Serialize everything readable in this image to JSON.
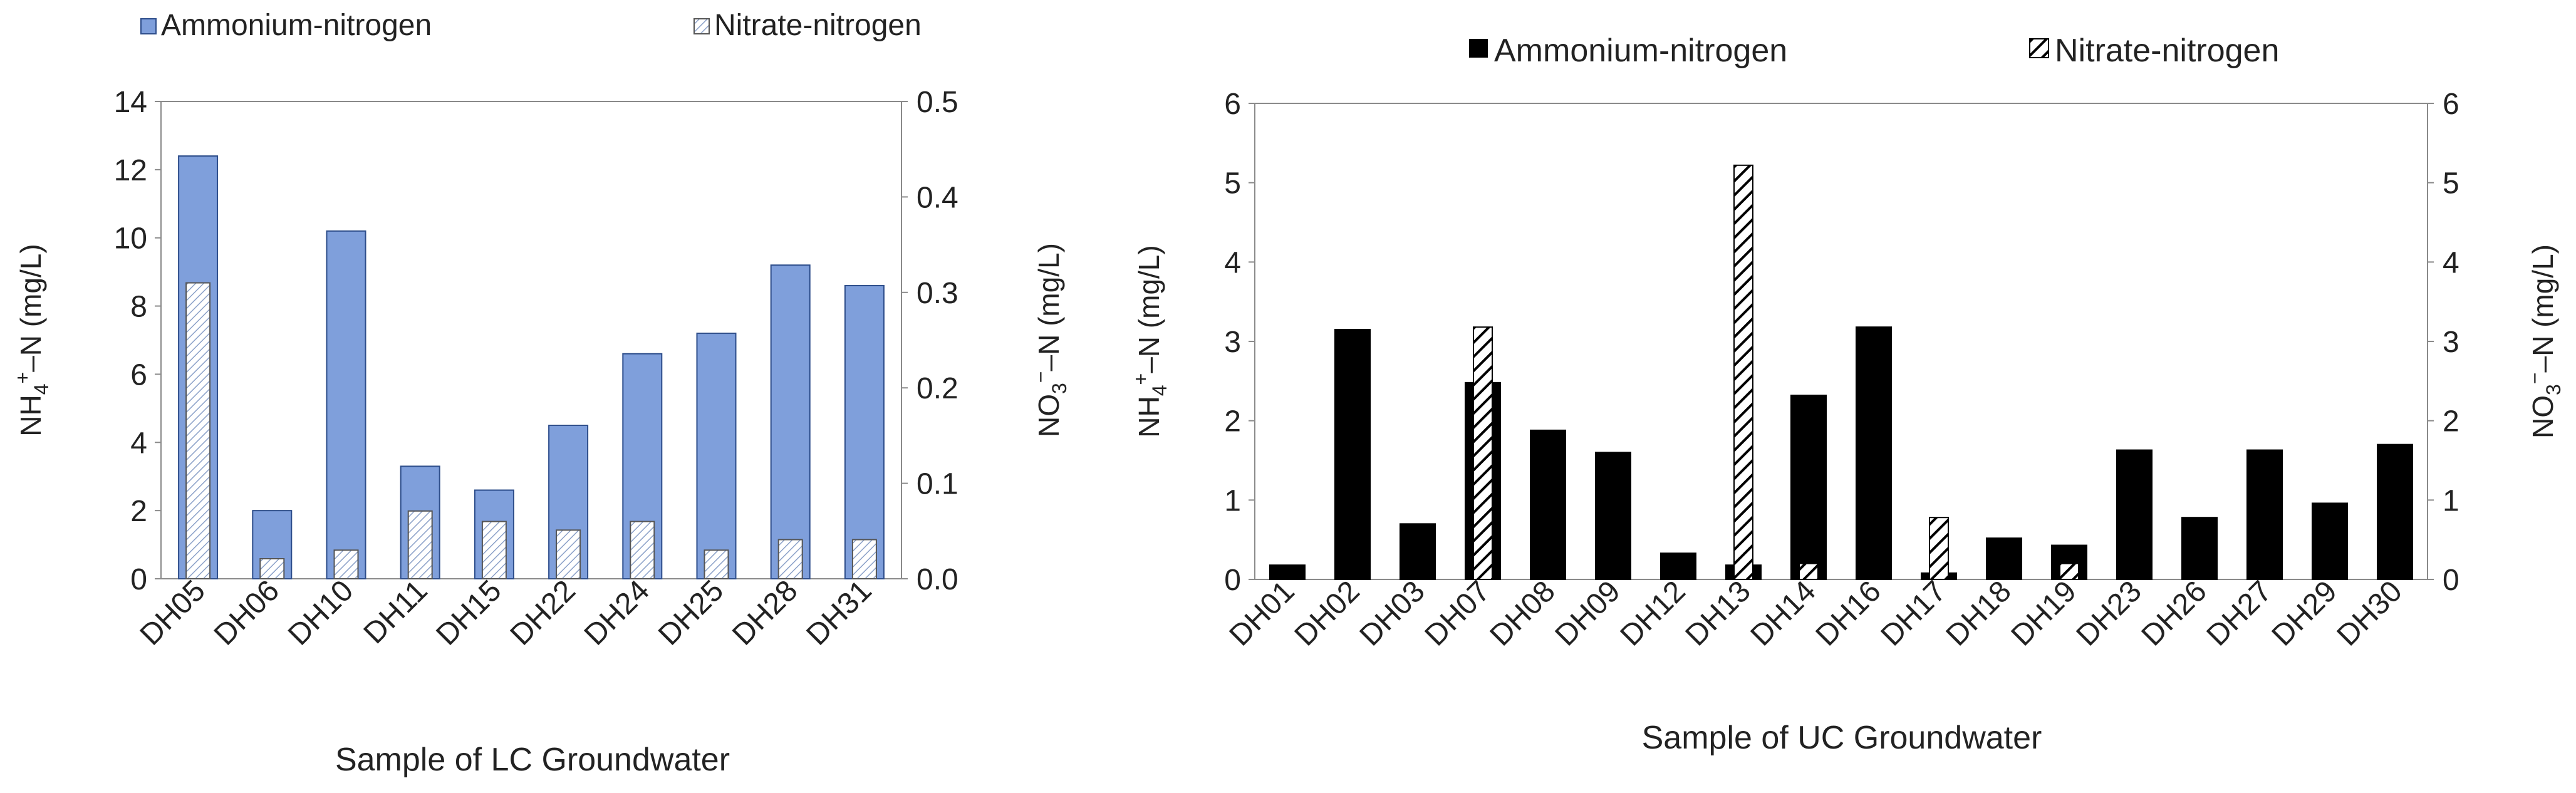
{
  "chart_data": [
    {
      "type": "bar",
      "xlabel": "Sample of LC Groundwater",
      "ylabel": "NH4+-N (mg/L)",
      "y2label": "NO3−-N (mg/L)",
      "ylim": [
        0,
        14
      ],
      "y2lim": [
        0,
        0.5
      ],
      "yticks": [
        "0",
        "2",
        "4",
        "6",
        "8",
        "10",
        "12",
        "14"
      ],
      "y2ticks": [
        "0.0",
        "0.1",
        "0.2",
        "0.3",
        "0.4",
        "0.5"
      ],
      "legend_position": "top",
      "categories": [
        "DH05",
        "DH06",
        "DH10",
        "DH11",
        "DH15",
        "DH22",
        "DH24",
        "DH25",
        "DH28",
        "DH31"
      ],
      "series": [
        {
          "name": "Ammonium-nitrogen",
          "axis": "left",
          "color": "#7f9fdb",
          "values": [
            12.4,
            2.0,
            10.2,
            3.3,
            2.6,
            4.5,
            6.6,
            7.2,
            9.2,
            8.6
          ]
        },
        {
          "name": "Nitrate-nitrogen",
          "axis": "right",
          "pattern": "light-hatch",
          "values": [
            0.31,
            0.021,
            0.03,
            0.071,
            0.06,
            0.051,
            0.06,
            0.03,
            0.041,
            0.041
          ]
        }
      ]
    },
    {
      "type": "bar",
      "xlabel": "Sample of UC Groundwater",
      "ylabel": "NH4+-N (mg/L)",
      "y2label": "NO3−-N (mg/L)",
      "ylim": [
        0,
        6
      ],
      "y2lim": [
        0,
        6
      ],
      "yticks": [
        "0",
        "1",
        "2",
        "3",
        "4",
        "5",
        "6"
      ],
      "y2ticks": [
        "0",
        "1",
        "2",
        "3",
        "4",
        "5",
        "6"
      ],
      "legend_position": "top",
      "categories": [
        "DH01",
        "DH02",
        "DH03",
        "DH07",
        "DH08",
        "DH09",
        "DH12",
        "DH13",
        "DH14",
        "DH16",
        "DH17",
        "DH18",
        "DH19",
        "DH23",
        "DH26",
        "DH27",
        "DH29",
        "DH30"
      ],
      "series": [
        {
          "name": "Ammonium-nitrogen",
          "axis": "left",
          "color": "#000000",
          "values": [
            0.18,
            3.15,
            0.7,
            2.48,
            1.88,
            1.6,
            0.33,
            0.18,
            2.32,
            3.18,
            0.08,
            0.52,
            0.43,
            1.63,
            0.78,
            1.63,
            0.96,
            1.7
          ]
        },
        {
          "name": "Nitrate-nitrogen",
          "axis": "right",
          "pattern": "bold-hatch",
          "values": [
            0,
            0,
            0,
            3.18,
            0,
            0,
            0,
            5.22,
            0.2,
            0,
            0.78,
            0,
            0.2,
            0,
            0,
            0,
            0,
            0
          ]
        }
      ]
    }
  ]
}
